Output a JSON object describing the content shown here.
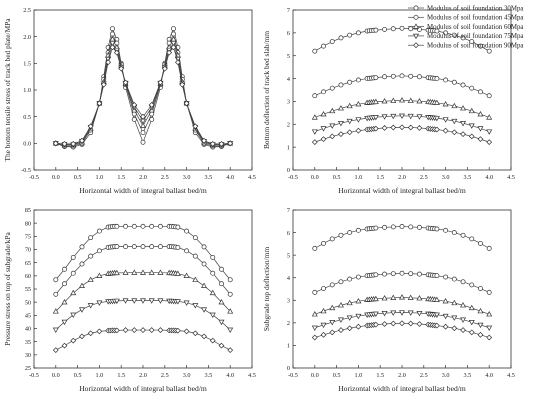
{
  "legend": {
    "placement": "top-right",
    "entries": [
      {
        "label": "Modulus of soil foundation 30Mpa",
        "marker": "circle"
      },
      {
        "label": "Modulus of soil foundation 45Mpa",
        "marker": "circle"
      },
      {
        "label": "Modulus of soil foundation 60Mpa",
        "marker": "triangle"
      },
      {
        "label": "Modulus of soil foundation 75Mpa",
        "marker": "triangle-down"
      },
      {
        "label": "Modulus of soil foundation 90Mpa",
        "marker": "diamond"
      }
    ]
  },
  "chart_data": [
    {
      "id": "a",
      "type": "line",
      "ylabel": "The bottom tensile stress of track bed plate/MPa",
      "xlabel": "Horizontal width of integral ballast bed/m",
      "xlim": [
        -0.5,
        4.5
      ],
      "ylim": [
        -0.5,
        2.5
      ],
      "xticks": [
        -0.5,
        0.0,
        0.5,
        1.0,
        1.5,
        2.0,
        2.5,
        3.0,
        3.5,
        4.0,
        4.5
      ],
      "yticks": [
        -0.5,
        0.0,
        0.5,
        1.0,
        1.5,
        2.0,
        2.5
      ],
      "x": [
        0.0,
        0.2,
        0.4,
        0.6,
        0.8,
        1.0,
        1.1,
        1.2,
        1.3,
        1.4,
        1.5,
        1.6,
        1.8,
        2.0,
        2.2,
        2.4,
        2.5,
        2.6,
        2.7,
        2.8,
        2.9,
        3.0,
        3.2,
        3.4,
        3.6,
        3.8,
        4.0
      ],
      "series": [
        {
          "name": "Modulus of soil foundation 30Mpa",
          "values": [
            0.0,
            -0.06,
            -0.07,
            -0.02,
            0.2,
            0.75,
            1.25,
            1.8,
            2.15,
            1.95,
            1.5,
            1.05,
            0.45,
            0.02,
            0.45,
            1.05,
            1.5,
            1.95,
            2.15,
            1.8,
            1.25,
            0.75,
            0.2,
            -0.02,
            -0.07,
            -0.06,
            0.0
          ]
        },
        {
          "name": "Modulus of soil foundation 45Mpa",
          "values": [
            0.0,
            -0.05,
            -0.05,
            0.0,
            0.25,
            0.75,
            1.2,
            1.7,
            2.05,
            1.88,
            1.48,
            1.1,
            0.55,
            0.2,
            0.55,
            1.1,
            1.48,
            1.88,
            2.05,
            1.7,
            1.2,
            0.75,
            0.25,
            0.0,
            -0.05,
            -0.05,
            0.0
          ]
        },
        {
          "name": "Modulus of soil foundation 60Mpa",
          "values": [
            0.0,
            -0.03,
            -0.03,
            0.02,
            0.28,
            0.75,
            1.15,
            1.65,
            1.95,
            1.8,
            1.45,
            1.12,
            0.62,
            0.33,
            0.62,
            1.12,
            1.45,
            1.8,
            1.95,
            1.65,
            1.15,
            0.75,
            0.28,
            0.02,
            -0.03,
            -0.03,
            0.0
          ]
        },
        {
          "name": "Modulus of soil foundation 75Mpa",
          "values": [
            0.0,
            -0.02,
            -0.02,
            0.04,
            0.3,
            0.75,
            1.12,
            1.58,
            1.88,
            1.75,
            1.42,
            1.13,
            0.68,
            0.42,
            0.68,
            1.13,
            1.42,
            1.75,
            1.88,
            1.58,
            1.12,
            0.75,
            0.3,
            0.04,
            -0.02,
            -0.02,
            0.0
          ]
        },
        {
          "name": "Modulus of soil foundation 90Mpa",
          "values": [
            0.0,
            -0.01,
            -0.01,
            0.05,
            0.32,
            0.75,
            1.1,
            1.52,
            1.8,
            1.7,
            1.4,
            1.14,
            0.72,
            0.5,
            0.72,
            1.14,
            1.4,
            1.7,
            1.8,
            1.52,
            1.1,
            0.75,
            0.32,
            0.05,
            -0.01,
            -0.01,
            0.0
          ]
        }
      ]
    },
    {
      "id": "b",
      "type": "line",
      "ylabel": "Bottom deflection of track bed slab/mm",
      "xlabel": "Horizontal width of integral ballast bed/m",
      "xlim": [
        -0.5,
        4.5
      ],
      "ylim": [
        0,
        7
      ],
      "xticks": [
        -0.5,
        0.0,
        0.5,
        1.0,
        1.5,
        2.0,
        2.5,
        3.0,
        3.5,
        4.0,
        4.5
      ],
      "yticks": [
        0,
        1,
        2,
        3,
        4,
        5,
        6,
        7
      ],
      "x": [
        0.0,
        0.2,
        0.4,
        0.6,
        0.8,
        1.0,
        1.2,
        1.25,
        1.3,
        1.35,
        1.4,
        1.6,
        1.8,
        2.0,
        2.2,
        2.4,
        2.6,
        2.65,
        2.7,
        2.75,
        2.8,
        3.0,
        3.2,
        3.4,
        3.6,
        3.8,
        4.0
      ],
      "series": [
        {
          "name": "Modulus of soil foundation 30Mpa",
          "values": [
            5.2,
            5.42,
            5.62,
            5.78,
            5.9,
            6.0,
            6.08,
            6.09,
            6.1,
            6.11,
            6.12,
            6.15,
            6.18,
            6.2,
            6.18,
            6.15,
            6.12,
            6.11,
            6.1,
            6.09,
            6.08,
            6.0,
            5.9,
            5.78,
            5.62,
            5.42,
            5.2
          ]
        },
        {
          "name": "Modulus of soil foundation 45Mpa",
          "values": [
            3.25,
            3.42,
            3.58,
            3.72,
            3.84,
            3.94,
            4.0,
            4.01,
            4.02,
            4.03,
            4.04,
            4.08,
            4.1,
            4.12,
            4.1,
            4.08,
            4.04,
            4.03,
            4.02,
            4.01,
            4.0,
            3.94,
            3.84,
            3.72,
            3.58,
            3.42,
            3.25
          ]
        },
        {
          "name": "Modulus of soil foundation 60Mpa",
          "values": [
            2.3,
            2.44,
            2.58,
            2.7,
            2.8,
            2.88,
            2.94,
            2.95,
            2.96,
            2.97,
            2.98,
            3.01,
            3.03,
            3.05,
            3.03,
            3.01,
            2.98,
            2.97,
            2.96,
            2.95,
            2.94,
            2.88,
            2.8,
            2.7,
            2.58,
            2.44,
            2.3
          ]
        },
        {
          "name": "Modulus of soil foundation 75Mpa",
          "values": [
            1.68,
            1.82,
            1.94,
            2.05,
            2.14,
            2.21,
            2.27,
            2.28,
            2.29,
            2.3,
            2.31,
            2.34,
            2.36,
            2.37,
            2.36,
            2.34,
            2.31,
            2.3,
            2.29,
            2.28,
            2.27,
            2.21,
            2.14,
            2.05,
            1.94,
            1.82,
            1.68
          ]
        },
        {
          "name": "Modulus of soil foundation 90Mpa",
          "values": [
            1.22,
            1.35,
            1.47,
            1.57,
            1.65,
            1.72,
            1.77,
            1.78,
            1.79,
            1.8,
            1.81,
            1.84,
            1.86,
            1.87,
            1.86,
            1.84,
            1.81,
            1.8,
            1.79,
            1.78,
            1.77,
            1.72,
            1.65,
            1.57,
            1.47,
            1.35,
            1.22
          ]
        }
      ]
    },
    {
      "id": "c",
      "type": "line",
      "ylabel": "Pressure stress on top of subgrade/kPa",
      "xlabel": "Horizontal width of integral ballast bed/m",
      "xlim": [
        -0.5,
        4.5
      ],
      "ylim": [
        25,
        85
      ],
      "xticks": [
        -0.5,
        0.0,
        0.5,
        1.0,
        1.5,
        2.0,
        2.5,
        3.0,
        3.5,
        4.0,
        4.5
      ],
      "yticks": [
        25,
        30,
        35,
        40,
        45,
        50,
        55,
        60,
        65,
        70,
        75,
        80,
        85
      ],
      "x": [
        0.0,
        0.2,
        0.4,
        0.6,
        0.8,
        1.0,
        1.2,
        1.25,
        1.3,
        1.35,
        1.4,
        1.6,
        1.8,
        2.0,
        2.2,
        2.4,
        2.6,
        2.65,
        2.7,
        2.75,
        2.8,
        3.0,
        3.2,
        3.4,
        3.6,
        3.8,
        4.0
      ],
      "series": [
        {
          "name": "Modulus of soil foundation 30Mpa",
          "values": [
            58.5,
            62.5,
            67.0,
            71.0,
            74.5,
            77.0,
            78.5,
            78.6,
            78.7,
            78.8,
            78.8,
            78.8,
            78.8,
            78.8,
            78.8,
            78.8,
            78.8,
            78.8,
            78.7,
            78.6,
            78.5,
            77.0,
            74.5,
            71.0,
            67.0,
            62.5,
            58.5
          ]
        },
        {
          "name": "Modulus of soil foundation 45Mpa",
          "values": [
            53.0,
            57.0,
            61.0,
            64.5,
            67.5,
            69.5,
            70.8,
            70.9,
            71.0,
            71.1,
            71.1,
            71.1,
            71.1,
            71.1,
            71.1,
            71.1,
            71.1,
            71.1,
            71.0,
            70.9,
            70.8,
            69.5,
            67.5,
            64.5,
            61.0,
            57.0,
            53.0
          ]
        },
        {
          "name": "Modulus of soil foundation 60Mpa",
          "values": [
            46.5,
            50.0,
            53.5,
            56.2,
            58.5,
            60.0,
            60.8,
            60.9,
            61.0,
            61.1,
            61.1,
            61.2,
            61.2,
            61.2,
            61.2,
            61.2,
            61.1,
            61.1,
            61.0,
            60.9,
            60.8,
            60.0,
            58.5,
            56.2,
            53.5,
            50.0,
            46.5
          ]
        },
        {
          "name": "Modulus of soil foundation 75Mpa",
          "values": [
            39.5,
            42.5,
            45.2,
            47.2,
            48.8,
            49.8,
            50.3,
            50.35,
            50.4,
            50.45,
            50.5,
            50.6,
            50.6,
            50.6,
            50.6,
            50.6,
            50.5,
            50.45,
            50.4,
            50.35,
            50.3,
            49.8,
            48.8,
            47.2,
            45.2,
            42.5,
            39.5
          ]
        },
        {
          "name": "Modulus of soil foundation 90Mpa",
          "values": [
            31.8,
            33.5,
            35.4,
            37.0,
            38.2,
            38.9,
            39.2,
            39.25,
            39.3,
            39.3,
            39.3,
            39.4,
            39.4,
            39.4,
            39.4,
            39.4,
            39.3,
            39.3,
            39.3,
            39.25,
            39.2,
            38.9,
            38.2,
            37.0,
            35.4,
            33.5,
            31.8
          ]
        }
      ]
    },
    {
      "id": "d",
      "type": "line",
      "ylabel": "Subgrade top deflection/mm",
      "xlabel": "Horizontal width of integral ballast bed/m",
      "xlim": [
        -0.5,
        4.5
      ],
      "ylim": [
        0,
        7
      ],
      "xticks": [
        -0.5,
        0.0,
        0.5,
        1.0,
        1.5,
        2.0,
        2.5,
        3.0,
        3.5,
        4.0,
        4.5
      ],
      "yticks": [
        0,
        1,
        2,
        3,
        4,
        5,
        6,
        7
      ],
      "x": [
        0.0,
        0.2,
        0.4,
        0.6,
        0.8,
        1.0,
        1.2,
        1.25,
        1.3,
        1.35,
        1.4,
        1.6,
        1.8,
        2.0,
        2.2,
        2.4,
        2.6,
        2.65,
        2.7,
        2.75,
        2.8,
        3.0,
        3.2,
        3.4,
        3.6,
        3.8,
        4.0
      ],
      "series": [
        {
          "name": "Modulus of soil foundation 30Mpa",
          "values": [
            5.3,
            5.52,
            5.72,
            5.88,
            6.0,
            6.1,
            6.16,
            6.17,
            6.18,
            6.19,
            6.2,
            6.23,
            6.25,
            6.27,
            6.25,
            6.23,
            6.2,
            6.19,
            6.18,
            6.17,
            6.16,
            6.1,
            6.0,
            5.88,
            5.72,
            5.52,
            5.3
          ]
        },
        {
          "name": "Modulus of soil foundation 45Mpa",
          "values": [
            3.35,
            3.52,
            3.68,
            3.82,
            3.94,
            4.03,
            4.09,
            4.1,
            4.11,
            4.12,
            4.13,
            4.16,
            4.18,
            4.2,
            4.18,
            4.16,
            4.13,
            4.12,
            4.11,
            4.1,
            4.09,
            4.03,
            3.94,
            3.82,
            3.68,
            3.52,
            3.35
          ]
        },
        {
          "name": "Modulus of soil foundation 60Mpa",
          "values": [
            2.38,
            2.52,
            2.66,
            2.78,
            2.88,
            2.96,
            3.02,
            3.03,
            3.04,
            3.05,
            3.06,
            3.09,
            3.11,
            3.13,
            3.11,
            3.09,
            3.06,
            3.05,
            3.04,
            3.03,
            3.02,
            2.96,
            2.88,
            2.78,
            2.66,
            2.52,
            2.38
          ]
        },
        {
          "name": "Modulus of soil foundation 75Mpa",
          "values": [
            1.78,
            1.91,
            2.03,
            2.14,
            2.23,
            2.3,
            2.36,
            2.37,
            2.38,
            2.39,
            2.4,
            2.43,
            2.45,
            2.46,
            2.45,
            2.43,
            2.4,
            2.39,
            2.38,
            2.37,
            2.36,
            2.3,
            2.23,
            2.14,
            2.03,
            1.91,
            1.78
          ]
        },
        {
          "name": "Modulus of soil foundation 90Mpa",
          "values": [
            1.35,
            1.47,
            1.58,
            1.68,
            1.76,
            1.83,
            1.88,
            1.89,
            1.9,
            1.91,
            1.92,
            1.95,
            1.97,
            1.98,
            1.97,
            1.95,
            1.92,
            1.91,
            1.9,
            1.89,
            1.88,
            1.83,
            1.76,
            1.68,
            1.58,
            1.47,
            1.35
          ]
        }
      ]
    }
  ]
}
